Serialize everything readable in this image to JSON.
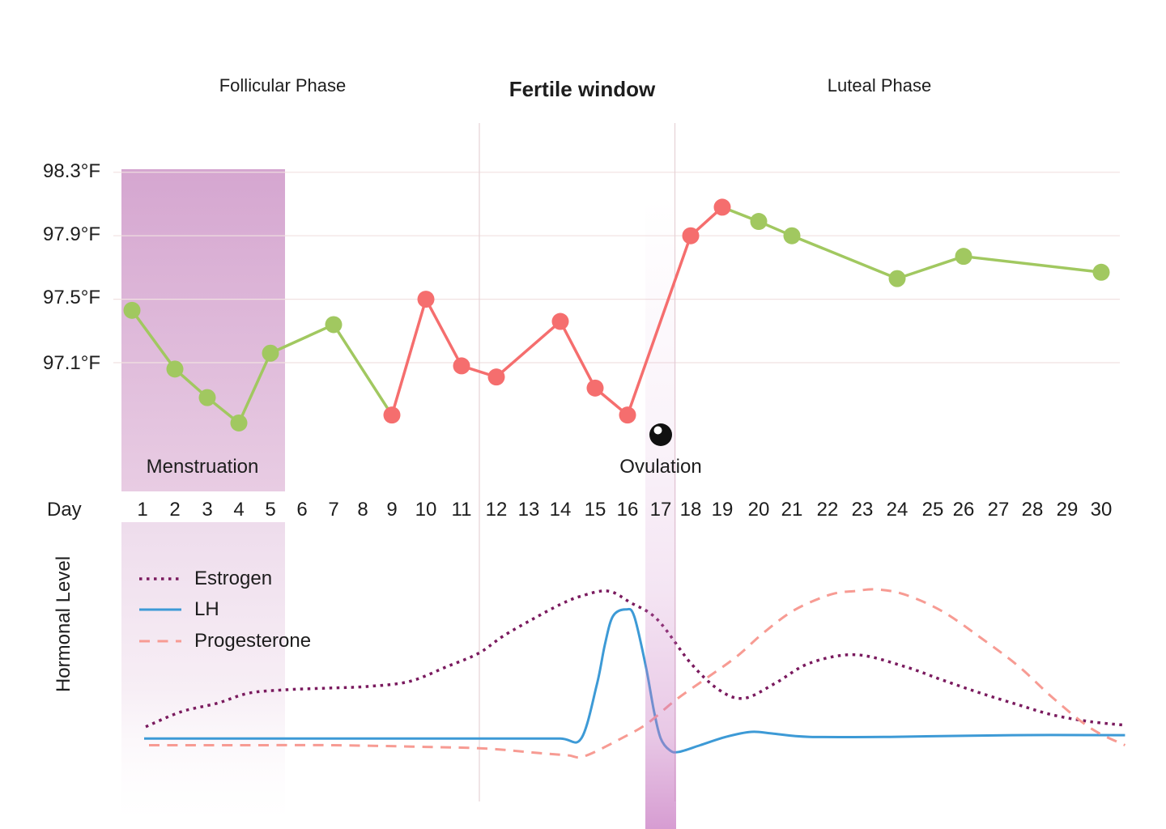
{
  "phases": {
    "follicular": "Follicular Phase",
    "fertile": "Fertile window",
    "luteal": "Luteal Phase"
  },
  "annotations": {
    "menstruation": "Menstruation",
    "ovulation": "Ovulation"
  },
  "axis": {
    "day_label": "Day",
    "days": [
      1,
      2,
      3,
      4,
      5,
      6,
      7,
      8,
      9,
      10,
      11,
      12,
      13,
      14,
      15,
      16,
      17,
      18,
      19,
      20,
      21,
      22,
      23,
      24,
      25,
      26,
      27,
      28,
      29,
      30
    ],
    "temp_ticks": [
      "98.3°F",
      "97.9°F",
      "97.5°F",
      "97.1°F"
    ],
    "hormone_axis_label": "Hormonal Level"
  },
  "legend": [
    {
      "label": "Estrogen",
      "style": "dotted",
      "color": "#7a1a5e"
    },
    {
      "label": "LH",
      "style": "solid",
      "color": "#3d9ad6"
    },
    {
      "label": "Progesterone",
      "style": "dashed",
      "color": "#f79b93"
    }
  ],
  "colors": {
    "temp_green": "#a1c860",
    "temp_red": "#f56e6e",
    "estrogen": "#7a1a5e",
    "lh": "#3d9ad6",
    "progesterone": "#f79b93",
    "band_purple": "#c97cc3",
    "menstruation_band": "#d5a6d0",
    "gridline": "#f1e1e1",
    "fertile_line": "#e6d3d6",
    "ovulation_icon": "#101010",
    "text": "#1d1d1d"
  },
  "chart_data": [
    {
      "type": "line",
      "name": "basal-body-temperature",
      "xlabel": "Day",
      "x_range": [
        1,
        30
      ],
      "y_tick_values": [
        98.3,
        97.9,
        97.5,
        97.1
      ],
      "y_tick_labels": [
        "98.3°F",
        "97.9°F",
        "97.5°F",
        "97.1°F"
      ],
      "ylim": [
        96.6,
        98.5
      ],
      "grid": true,
      "series": [
        {
          "name": "BBT",
          "points": [
            {
              "day": 1,
              "temp": 97.43,
              "dot": "green",
              "seg": "green"
            },
            {
              "day": 2,
              "temp": 97.06,
              "dot": "green",
              "seg": "green"
            },
            {
              "day": 3,
              "temp": 96.88,
              "dot": "green",
              "seg": "green"
            },
            {
              "day": 4,
              "temp": 96.72,
              "dot": "green",
              "seg": "green"
            },
            {
              "day": 5,
              "temp": 97.16,
              "dot": "green",
              "seg": "green"
            },
            {
              "day": 7,
              "temp": 97.34,
              "dot": "green",
              "seg": "green"
            },
            {
              "day": 9,
              "temp": 96.77,
              "dot": "red",
              "seg": "red"
            },
            {
              "day": 10,
              "temp": 97.5,
              "dot": "red",
              "seg": "red"
            },
            {
              "day": 11,
              "temp": 97.08,
              "dot": "red",
              "seg": "red"
            },
            {
              "day": 12,
              "temp": 97.01,
              "dot": "red",
              "seg": "red"
            },
            {
              "day": 14,
              "temp": 97.36,
              "dot": "red",
              "seg": "red"
            },
            {
              "day": 15,
              "temp": 96.94,
              "dot": "red",
              "seg": "red"
            },
            {
              "day": 16,
              "temp": 96.77,
              "dot": "red",
              "seg": "red"
            },
            {
              "day": 18,
              "temp": 97.9,
              "dot": "red",
              "seg": "red"
            },
            {
              "day": 19,
              "temp": 98.08,
              "dot": "red",
              "seg": "green"
            },
            {
              "day": 20,
              "temp": 97.99,
              "dot": "green",
              "seg": "green"
            },
            {
              "day": 21,
              "temp": 97.9,
              "dot": "green",
              "seg": "green"
            },
            {
              "day": 24,
              "temp": 97.63,
              "dot": "green",
              "seg": "green"
            },
            {
              "day": 26,
              "temp": 97.77,
              "dot": "green",
              "seg": "green"
            },
            {
              "day": 30,
              "temp": 97.67,
              "dot": "green",
              "seg": null
            }
          ]
        }
      ],
      "annotations": {
        "menstruation_days": [
          1,
          5
        ],
        "fertile_window_days": [
          11,
          17
        ],
        "ovulation_day": 17
      }
    },
    {
      "type": "line",
      "name": "hormonal-levels",
      "ylabel": "Hormonal Level",
      "x_range": [
        1,
        30
      ],
      "ylim": [
        0,
        100
      ],
      "grid": false,
      "legend_position": "top-left",
      "series": [
        {
          "name": "Estrogen",
          "style": "dotted",
          "color": "#7a1a5e",
          "points": [
            [
              1.1,
              18
            ],
            [
              2.2,
              27
            ],
            [
              3.3,
              32
            ],
            [
              4.3,
              38
            ],
            [
              5.4,
              40
            ],
            [
              6.7,
              41
            ],
            [
              8.1,
              42
            ],
            [
              9.5,
              45
            ],
            [
              10.6,
              54
            ],
            [
              11.5,
              62
            ],
            [
              12.2,
              72
            ],
            [
              13.1,
              82
            ],
            [
              14,
              91
            ],
            [
              14.6,
              96
            ],
            [
              15.4,
              99
            ],
            [
              16.1,
              92
            ],
            [
              16.9,
              82
            ],
            [
              18,
              56
            ],
            [
              18.9,
              40
            ],
            [
              19.6,
              35
            ],
            [
              20.5,
              44
            ],
            [
              21.5,
              56
            ],
            [
              22.8,
              61
            ],
            [
              24.2,
              54
            ],
            [
              25.3,
              46
            ],
            [
              26.5,
              38
            ],
            [
              27.6,
              31
            ],
            [
              28.6,
              25
            ],
            [
              29.7,
              21
            ],
            [
              30.7,
              19
            ]
          ]
        },
        {
          "name": "LH",
          "style": "solid",
          "color": "#3d9ad6",
          "points": [
            [
              1.05,
              11
            ],
            [
              4,
              11
            ],
            [
              7,
              11
            ],
            [
              10,
              11
            ],
            [
              12.5,
              11
            ],
            [
              14,
              11
            ],
            [
              14.6,
              11
            ],
            [
              15.05,
              43
            ],
            [
              15.3,
              67
            ],
            [
              15.55,
              84
            ],
            [
              15.95,
              88
            ],
            [
              16.2,
              84
            ],
            [
              16.55,
              54
            ],
            [
              16.8,
              27
            ],
            [
              17,
              11
            ],
            [
              17.3,
              4
            ],
            [
              17.6,
              3
            ],
            [
              18.3,
              7
            ],
            [
              19.1,
              12
            ],
            [
              19.8,
              15
            ],
            [
              20.4,
              14
            ],
            [
              21.5,
              12
            ],
            [
              23.8,
              12
            ],
            [
              27.4,
              13
            ],
            [
              30.7,
              13
            ]
          ]
        },
        {
          "name": "Progesterone",
          "style": "dashed",
          "color": "#f79b93",
          "points": [
            [
              1.2,
              7
            ],
            [
              4,
              7
            ],
            [
              7,
              7
            ],
            [
              10,
              6
            ],
            [
              11.7,
              5
            ],
            [
              13.2,
              2.5
            ],
            [
              14.2,
              1
            ],
            [
              14.7,
              0.5
            ],
            [
              15.9,
              12
            ],
            [
              16.6,
              20
            ],
            [
              17.5,
              34
            ],
            [
              18.5,
              47
            ],
            [
              19.4,
              60
            ],
            [
              20.2,
              75
            ],
            [
              21.1,
              88
            ],
            [
              22.1,
              97
            ],
            [
              22.8,
              99
            ],
            [
              23.4,
              100
            ],
            [
              24.2,
              97
            ],
            [
              25.3,
              87
            ],
            [
              26.5,
              71
            ],
            [
              27.6,
              54
            ],
            [
              28.6,
              35
            ],
            [
              29.7,
              17
            ],
            [
              30.7,
              7
            ]
          ]
        }
      ]
    }
  ]
}
